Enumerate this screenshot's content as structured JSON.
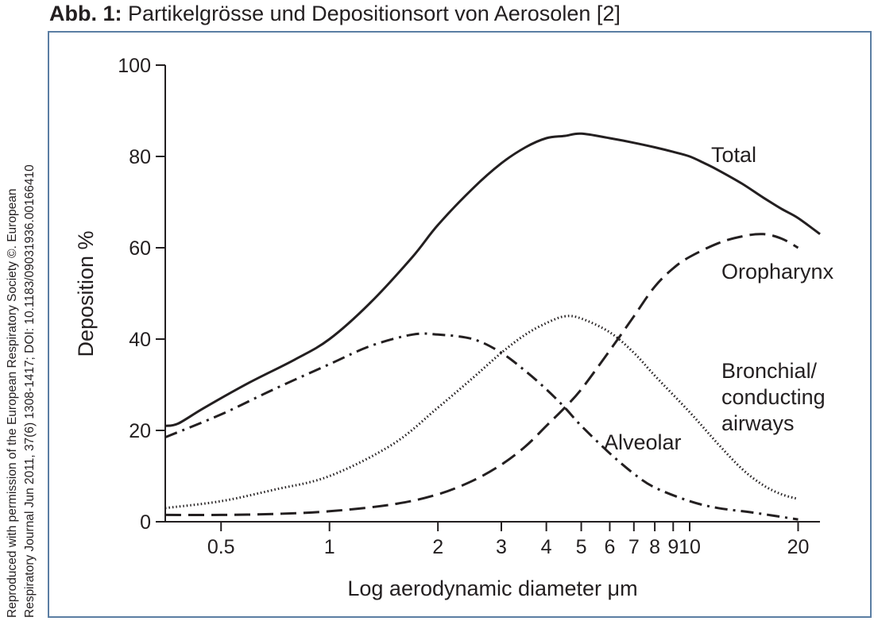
{
  "caption": {
    "label": "Abb. 1:",
    "text": "Partikelgrösse und Depositionsort von Aerosolen [2]"
  },
  "credit": {
    "line1": "Reproduced with permission of the European Respiratory Society ©. European",
    "line2": "Respiratory Journal Jun 2011, 37(6) 1308-1417; DOI: 10.1183/09031936.00166410"
  },
  "chart_data": {
    "type": "line",
    "xlabel": "Log aerodynamic diameter μm",
    "ylabel": "Deposition %",
    "x_scale": "log",
    "xlim": [
      0.35,
      23
    ],
    "ylim": [
      0,
      100
    ],
    "x_ticks": [
      0.5,
      1,
      2,
      3,
      4,
      5,
      6,
      7,
      8,
      9,
      10,
      20
    ],
    "x_tick_labels": [
      "0.5",
      "1",
      "2",
      "3",
      "4",
      "5",
      "6",
      "7",
      "8",
      "9",
      "10",
      "20"
    ],
    "y_ticks": [
      0,
      20,
      40,
      60,
      80,
      100
    ],
    "y_tick_labels": [
      "0",
      "20",
      "40",
      "60",
      "80",
      "100"
    ],
    "grid": false,
    "legend": "none (curves labelled directly)",
    "series": [
      {
        "name": "Total",
        "style": "solid",
        "color": "#231f20",
        "x": [
          0.35,
          0.38,
          0.45,
          0.6,
          0.8,
          1.0,
          1.3,
          1.7,
          2.0,
          2.5,
          3.0,
          3.5,
          4.0,
          4.5,
          5.0,
          6.0,
          7.0,
          8.0,
          9.0,
          10.0,
          11.0,
          12.0,
          14.0,
          16.0,
          18.0,
          20.0,
          23.0
        ],
        "y": [
          21.0,
          21.5,
          25.0,
          30.5,
          35.5,
          40.0,
          48.0,
          58.0,
          65.0,
          73.0,
          78.5,
          82.0,
          84.0,
          84.5,
          85.0,
          84.0,
          83.0,
          82.0,
          81.0,
          80.0,
          78.5,
          77.0,
          74.0,
          71.0,
          68.5,
          66.5,
          63.0
        ]
      },
      {
        "name": "Oropharynx",
        "style": "dashed",
        "color": "#231f20",
        "x": [
          0.35,
          0.5,
          0.7,
          1.0,
          1.5,
          2.0,
          2.5,
          3.0,
          3.5,
          4.0,
          4.5,
          5.0,
          6.0,
          7.0,
          8.0,
          9.0,
          10.0,
          12.0,
          14.0,
          16.0,
          18.0,
          20.0
        ],
        "y": [
          1.5,
          1.5,
          1.7,
          2.3,
          3.8,
          6.0,
          9.0,
          12.5,
          16.5,
          21.0,
          25.0,
          29.0,
          37.5,
          45.0,
          51.5,
          55.5,
          58.0,
          61.0,
          62.5,
          63.0,
          62.0,
          60.0
        ]
      },
      {
        "name": "Bronchial/ conducting airways",
        "style": "dotted",
        "color": "#231f20",
        "x": [
          0.35,
          0.5,
          0.7,
          1.0,
          1.5,
          2.0,
          2.5,
          3.0,
          3.5,
          4.0,
          4.5,
          5.0,
          6.0,
          7.0,
          8.0,
          10.0,
          12.0,
          14.0,
          16.0,
          18.0,
          20.0
        ],
        "y": [
          3.0,
          4.5,
          7.0,
          10.0,
          17.0,
          25.0,
          31.5,
          37.0,
          41.0,
          43.5,
          45.0,
          44.5,
          41.5,
          37.0,
          32.0,
          24.0,
          17.0,
          11.5,
          8.0,
          6.0,
          5.0
        ]
      },
      {
        "name": "Alveolar",
        "style": "dash-dot",
        "color": "#231f20",
        "x": [
          0.35,
          0.5,
          0.7,
          1.0,
          1.3,
          1.7,
          2.0,
          2.5,
          3.0,
          3.5,
          4.0,
          4.5,
          5.0,
          6.0,
          7.0,
          8.0,
          10.0,
          12.0,
          15.0,
          20.0
        ],
        "y": [
          18.5,
          23.5,
          29.0,
          34.5,
          38.5,
          41.0,
          41.0,
          40.0,
          37.0,
          33.0,
          29.0,
          25.0,
          21.0,
          15.0,
          10.5,
          7.5,
          4.5,
          3.0,
          2.0,
          0.5
        ]
      }
    ],
    "annotations": [
      {
        "text": "Total",
        "series": "Total"
      },
      {
        "text": "Oropharynx",
        "series": "Oropharynx"
      },
      {
        "text": "Bronchial/",
        "series": "Bronchial/ conducting airways"
      },
      {
        "text": "conducting",
        "series": "Bronchial/ conducting airways"
      },
      {
        "text": "airways",
        "series": "Bronchial/ conducting airways"
      },
      {
        "text": "Alveolar",
        "series": "Alveolar"
      }
    ]
  }
}
